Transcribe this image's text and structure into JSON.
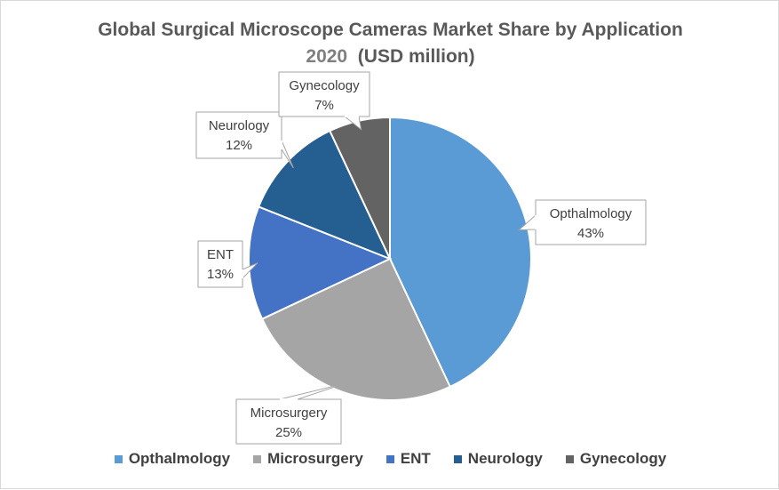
{
  "chart_data": {
    "type": "pie",
    "title": "Global Surgical Microscope Cameras Market Share by Application",
    "subtitle_year": "2020",
    "subtitle_unit": "(USD million)",
    "slices": [
      {
        "name": "Opthalmology",
        "value": 43,
        "label": "43%",
        "color": "#5b9bd5"
      },
      {
        "name": "Microsurgery",
        "value": 25,
        "label": "25%",
        "color": "#a5a5a5"
      },
      {
        "name": "ENT",
        "value": 13,
        "label": "13%",
        "color": "#4472c4"
      },
      {
        "name": "Neurology",
        "value": 12,
        "label": "12%",
        "color": "#255e91"
      },
      {
        "name": "Gynecology",
        "value": 7,
        "label": "7%",
        "color": "#636363"
      }
    ],
    "start_angle_deg": 0,
    "direction": "clockwise",
    "legend_position": "bottom",
    "data_labels": "callout"
  }
}
